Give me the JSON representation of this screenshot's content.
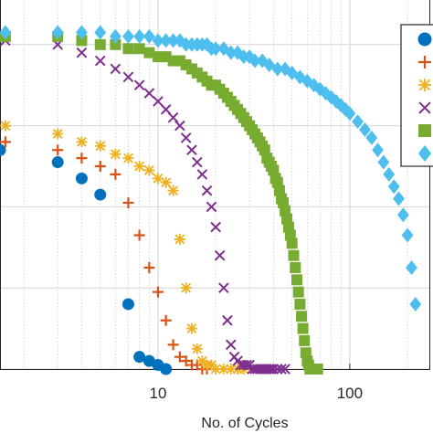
{
  "chart_data": {
    "type": "scatter",
    "title": "",
    "xlabel": "No. of Cycles",
    "ylabel": "",
    "x_scale": "log",
    "xlim": [
      1.5,
      260
    ],
    "ylim": [
      0,
      1
    ],
    "x_ticks": [
      10,
      100
    ],
    "x_tick_labels": [
      "10",
      "100"
    ],
    "y_ticks": [
      0,
      0.2,
      0.4,
      0.6,
      0.8,
      1.0
    ],
    "grid": true,
    "legend_placement": "top-right",
    "series": [
      {
        "marker": "circle",
        "color": "#0072BD",
        "x": [
          1.5,
          3,
          4,
          5,
          7,
          8,
          9,
          10,
          11
        ],
        "y": [
          0.54,
          0.51,
          0.47,
          0.43,
          0.16,
          0.03,
          0.02,
          0.01,
          0.0
        ]
      },
      {
        "marker": "plus",
        "color": "#D95319",
        "x": [
          1.6,
          3,
          4,
          5,
          6,
          7,
          8,
          9,
          10,
          11,
          12,
          13,
          14,
          15,
          16,
          17,
          18
        ],
        "y": [
          0.56,
          0.54,
          0.52,
          0.5,
          0.48,
          0.41,
          0.33,
          0.25,
          0.19,
          0.12,
          0.06,
          0.03,
          0.02,
          0.01,
          0.01,
          0.0,
          0.0
        ]
      },
      {
        "marker": "star",
        "color": "#EDB120",
        "x": [
          1.6,
          3,
          4,
          5,
          6,
          7,
          8,
          9,
          10,
          11,
          12,
          13,
          14,
          15,
          16,
          17,
          18,
          19,
          20,
          22,
          24,
          26,
          28
        ],
        "y": [
          0.6,
          0.58,
          0.56,
          0.55,
          0.53,
          0.52,
          0.5,
          0.49,
          0.47,
          0.46,
          0.44,
          0.32,
          0.2,
          0.1,
          0.05,
          0.02,
          0.01,
          0.01,
          0.0,
          0.0,
          0.0,
          0.0,
          0.0
        ]
      },
      {
        "marker": "x",
        "color": "#7E2F8E",
        "x": [
          1.6,
          3,
          4,
          5,
          6,
          7,
          8,
          9,
          10,
          11,
          12,
          13,
          14,
          15,
          16,
          17,
          18,
          19,
          20,
          21,
          22,
          23,
          24,
          25,
          26,
          27,
          28,
          29,
          30,
          31,
          32,
          33,
          34,
          35,
          36,
          37,
          38,
          39,
          40,
          42,
          44,
          46
        ],
        "y": [
          0.81,
          0.8,
          0.78,
          0.76,
          0.74,
          0.72,
          0.7,
          0.68,
          0.66,
          0.64,
          0.62,
          0.6,
          0.57,
          0.54,
          0.51,
          0.48,
          0.44,
          0.4,
          0.35,
          0.28,
          0.2,
          0.12,
          0.06,
          0.03,
          0.02,
          0.01,
          0.01,
          0.01,
          0.01,
          0.0,
          0.0,
          0.0,
          0.0,
          0.0,
          0.0,
          0.0,
          0.0,
          0.0,
          0.0,
          0.0,
          0.0,
          0.0
        ]
      },
      {
        "marker": "square",
        "color": "#77AC30",
        "x": [
          1.6,
          3,
          4,
          5,
          6,
          7,
          8,
          9,
          10,
          11,
          12,
          13,
          14,
          15,
          16,
          17,
          18,
          19,
          20,
          21,
          22,
          23,
          24,
          25,
          26,
          27,
          28,
          29,
          30,
          31,
          32,
          33,
          34,
          35,
          36,
          37,
          38,
          39,
          40,
          41,
          42,
          43,
          44,
          45,
          46,
          47,
          48,
          49,
          50,
          51,
          52,
          53,
          54,
          55,
          56,
          57,
          58,
          59,
          60,
          61,
          62,
          64,
          66,
          68
        ],
        "y": [
          0.82,
          0.82,
          0.81,
          0.8,
          0.8,
          0.79,
          0.79,
          0.78,
          0.77,
          0.77,
          0.76,
          0.76,
          0.75,
          0.74,
          0.73,
          0.72,
          0.71,
          0.7,
          0.7,
          0.69,
          0.68,
          0.67,
          0.66,
          0.65,
          0.64,
          0.63,
          0.62,
          0.61,
          0.6,
          0.59,
          0.58,
          0.57,
          0.56,
          0.55,
          0.54,
          0.52,
          0.51,
          0.5,
          0.49,
          0.47,
          0.46,
          0.44,
          0.42,
          0.41,
          0.39,
          0.37,
          0.35,
          0.33,
          0.31,
          0.28,
          0.25,
          0.22,
          0.19,
          0.16,
          0.13,
          0.1,
          0.07,
          0.04,
          0.02,
          0.01,
          0.0,
          0.0,
          0.0,
          0.0
        ]
      },
      {
        "marker": "diamond",
        "color": "#4DBEEE",
        "x": [
          1.6,
          3,
          4,
          5,
          6,
          7,
          8,
          9,
          10,
          11,
          12,
          13,
          14,
          15,
          16,
          17,
          18,
          19,
          20,
          22,
          24,
          26,
          28,
          30,
          32,
          35,
          38,
          42,
          46,
          50,
          55,
          60,
          65,
          70,
          75,
          80,
          85,
          90,
          95,
          100,
          110,
          120,
          130,
          140,
          150,
          160,
          170,
          180,
          190,
          200,
          210,
          220
        ],
        "y": [
          0.83,
          0.83,
          0.83,
          0.83,
          0.82,
          0.82,
          0.82,
          0.82,
          0.81,
          0.81,
          0.81,
          0.81,
          0.8,
          0.8,
          0.8,
          0.8,
          0.8,
          0.79,
          0.79,
          0.79,
          0.78,
          0.78,
          0.77,
          0.77,
          0.76,
          0.76,
          0.75,
          0.74,
          0.74,
          0.73,
          0.72,
          0.71,
          0.7,
          0.69,
          0.68,
          0.67,
          0.66,
          0.65,
          0.64,
          0.63,
          0.61,
          0.59,
          0.57,
          0.54,
          0.51,
          0.48,
          0.45,
          0.42,
          0.38,
          0.33,
          0.25,
          0.16
        ]
      }
    ]
  }
}
